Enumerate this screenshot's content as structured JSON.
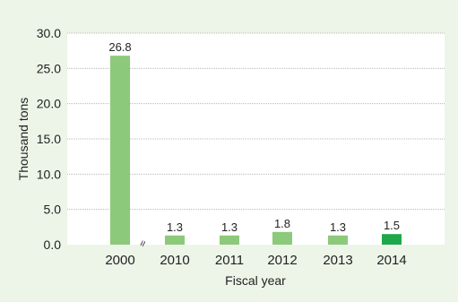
{
  "chart_data": {
    "type": "bar",
    "title": "",
    "xlabel": "Fiscal year",
    "ylabel": "Thousand tons",
    "categories": [
      "2000",
      "2010",
      "2011",
      "2012",
      "2013",
      "2014"
    ],
    "values": [
      26.8,
      1.3,
      1.3,
      1.8,
      1.3,
      1.5
    ],
    "value_labels": [
      "26.8",
      "1.3",
      "1.3",
      "1.8",
      "1.3",
      "1.5"
    ],
    "ylim": [
      0,
      30
    ],
    "yticks": [
      "0.0",
      "5.0",
      "10.0",
      "15.0",
      "20.0",
      "25.0",
      "30.0"
    ],
    "grid": true,
    "axis_break_symbol": "≈",
    "colors": {
      "bar": "#8cc97a",
      "highlight_bar": "#1fa84b",
      "background": "#edf5e8",
      "plot_background": "#ffffff",
      "grid": "#b8b8b8"
    },
    "highlight_category": "2014"
  }
}
